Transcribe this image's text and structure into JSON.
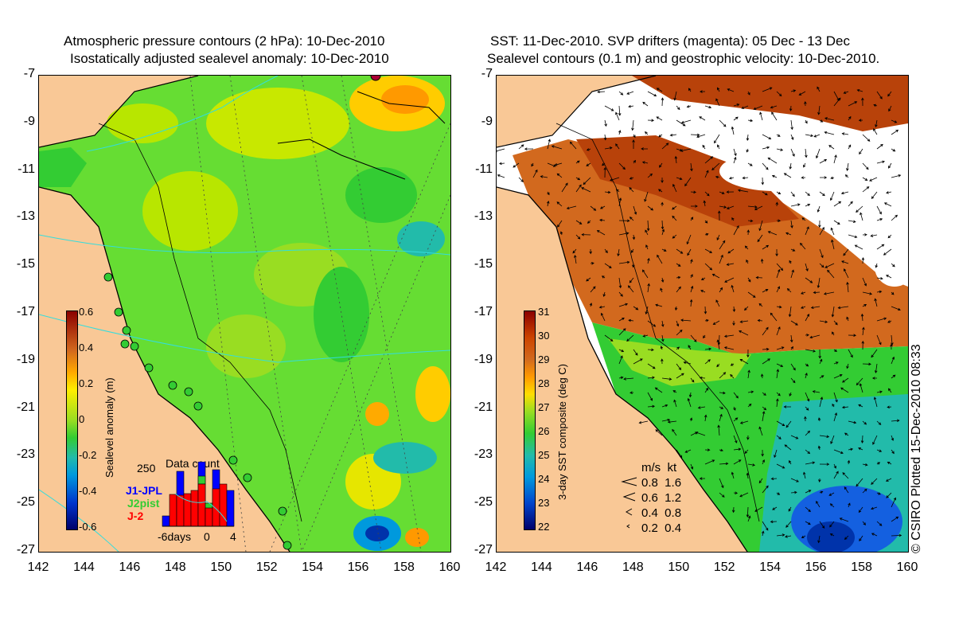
{
  "left_panel": {
    "title_line1": "Atmospheric pressure contours (2 hPa): 10-Dec-2010",
    "title_line2": "Isostatically adjusted sealevel anomaly: 10-Dec-2010",
    "colorbar_title": "Sealevel anomaly (m)",
    "colorbar_ticks": [
      "0.6",
      "0.4",
      "0.2",
      "0",
      "-0.2",
      "-0.4",
      "-0.6"
    ],
    "data_count": {
      "title": "Data count",
      "ymax_label": "250",
      "x_labels": [
        "-6days",
        "0",
        "4"
      ],
      "missions": [
        {
          "name": "J1-JPL",
          "color": "#0000ff"
        },
        {
          "name": "J2pist",
          "color": "#33cc33"
        },
        {
          "name": "J-2",
          "color": "#ff0000"
        }
      ]
    }
  },
  "right_panel": {
    "title_line1": "SST: 11-Dec-2010. SVP drifters (magenta): 05 Dec - 13 Dec",
    "title_line2": "Sealevel contours (0.1 m) and geostrophic velocity: 10-Dec-2010.",
    "colorbar_title": "3-day SST composite (deg C)",
    "colorbar_ticks": [
      "31",
      "30",
      "29",
      "28",
      "27",
      "26",
      "25",
      "24",
      "23",
      "22"
    ],
    "vector_legend": {
      "header": "m/s  kt",
      "rows": [
        "0.8  1.6",
        "0.6  1.2",
        "0.4  0.8",
        "0.2  0.4"
      ]
    }
  },
  "axes": {
    "y_labels": [
      "-7",
      "-9",
      "-11",
      "-13",
      "-15",
      "-17",
      "-19",
      "-21",
      "-23",
      "-25",
      "-27"
    ],
    "x_labels": [
      "142",
      "144",
      "146",
      "148",
      "150",
      "152",
      "154",
      "156",
      "158",
      "160"
    ]
  },
  "credit": "© CSIRO Plotted 15-Dec-2010 08:33",
  "colors": {
    "land": "#f9c896",
    "ocean_green": "#33cc33",
    "warm": "#cc5a14",
    "cold": "#1460e0"
  }
}
